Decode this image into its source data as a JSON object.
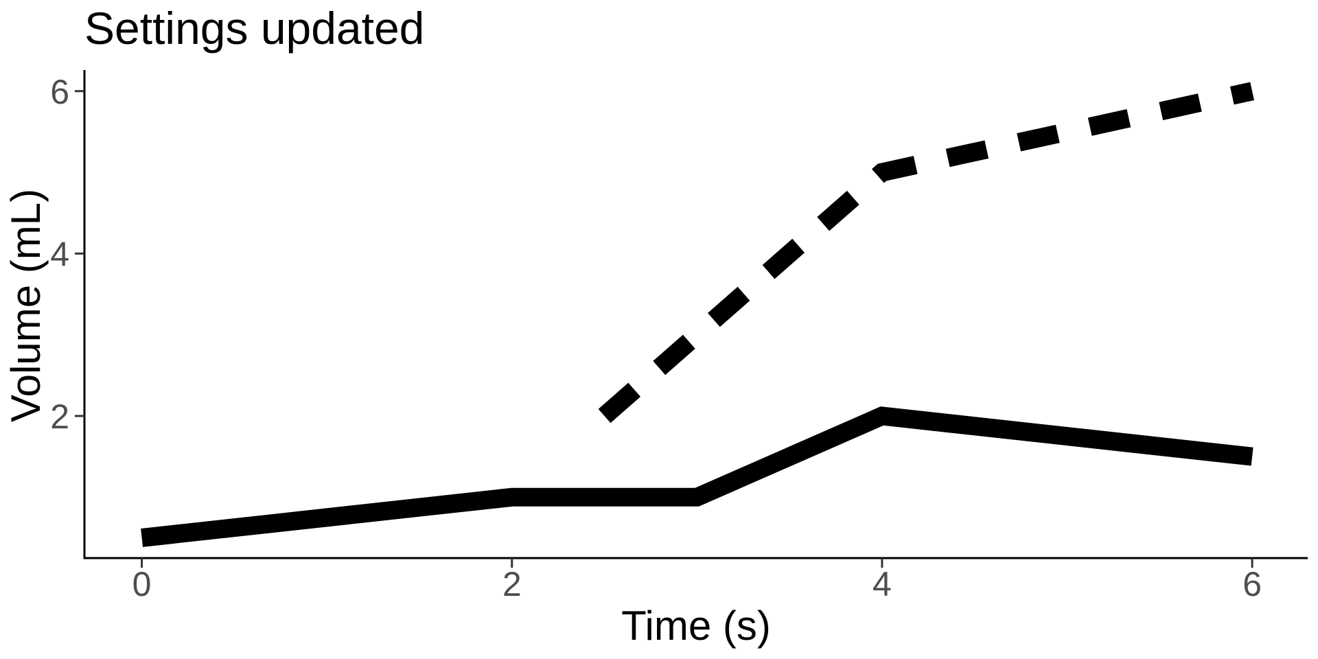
{
  "chart_data": {
    "type": "line",
    "title": "Settings updated",
    "xlabel": "Time (s)",
    "ylabel": "Volume (mL)",
    "x_ticks": [
      0,
      2,
      4,
      6
    ],
    "y_ticks": [
      2,
      4,
      6
    ],
    "xlim": [
      -0.31,
      6.3
    ],
    "ylim": [
      0.25,
      6.26
    ],
    "grid": false,
    "legend": "none",
    "series": [
      {
        "name": "solid-series",
        "linetype": "solid",
        "x": [
          0,
          2,
          3,
          4,
          6
        ],
        "y": [
          0.5,
          1.0,
          1.0,
          2.0,
          1.5
        ]
      },
      {
        "name": "dashed-series",
        "linetype": "dashed",
        "x": [
          2.5,
          4,
          6
        ],
        "y": [
          2.0,
          5.0,
          6.0
        ]
      }
    ],
    "colors": {
      "line": "#000000",
      "axis": "#000000",
      "tick": "#333333",
      "tick_label": "#4D4D4D",
      "background": "#FFFFFF"
    }
  }
}
